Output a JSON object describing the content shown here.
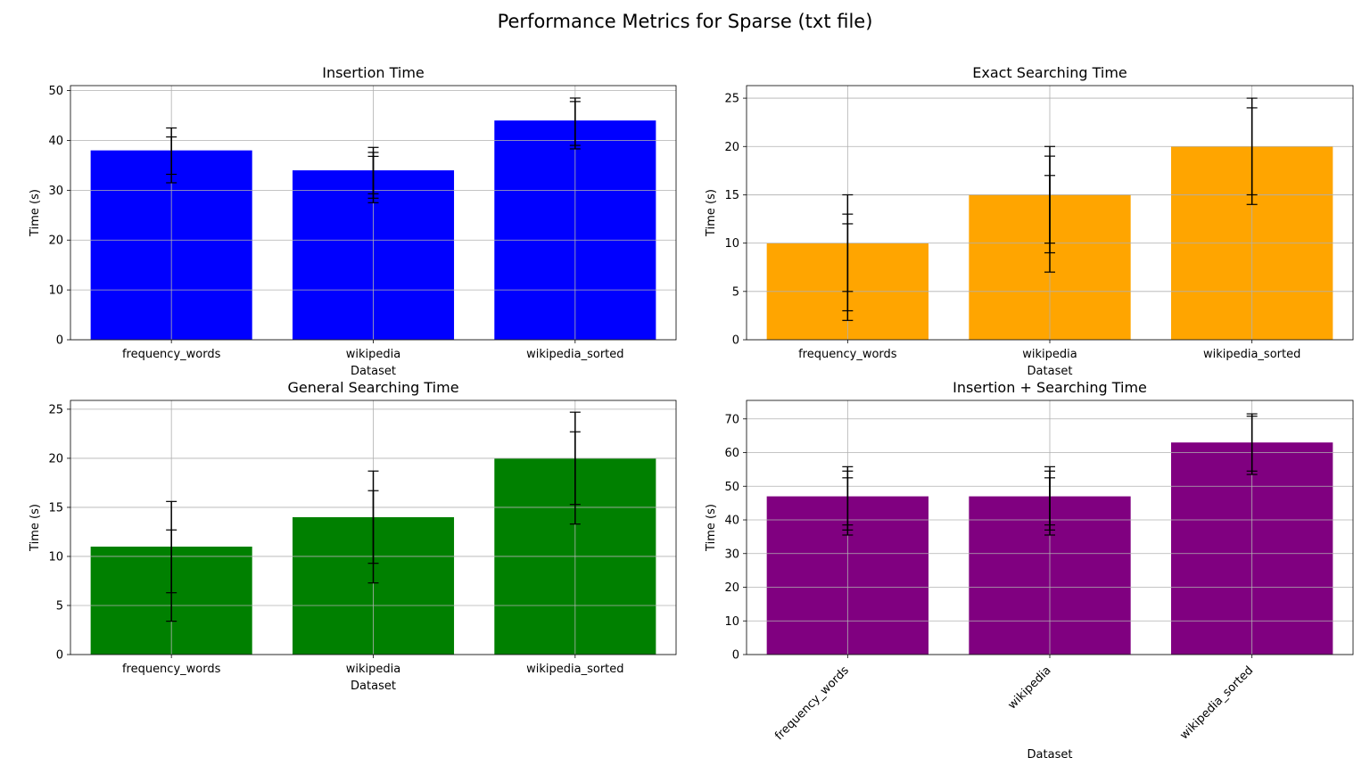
{
  "figure": {
    "title": "Performance Metrics for Sparse (txt file)"
  },
  "chart_data": [
    {
      "type": "bar",
      "title": "Insertion Time",
      "xlabel": "Dataset",
      "ylabel": "Time (s)",
      "categories": [
        "frequency_words",
        "wikipedia",
        "wikipedia_sorted"
      ],
      "values": [
        38,
        34,
        44
      ],
      "color": "#0000ff",
      "ylim": [
        0,
        51
      ],
      "yticks": [
        0,
        10,
        20,
        30,
        40,
        50
      ],
      "grid": true,
      "error_bars": [
        [
          [
            31.5,
            42.5
          ],
          [
            33.2,
            40.7
          ]
        ],
        [
          [
            27.5,
            38.6
          ],
          [
            29.3,
            36.8
          ],
          [
            28.4,
            37.6
          ]
        ],
        [
          [
            38.3,
            48.5
          ],
          [
            39.0,
            47.8
          ]
        ]
      ]
    },
    {
      "type": "bar",
      "title": "Exact Searching Time",
      "xlabel": "Dataset",
      "ylabel": "Time (s)",
      "categories": [
        "frequency_words",
        "wikipedia",
        "wikipedia_sorted"
      ],
      "values": [
        10,
        15,
        20
      ],
      "color": "#ffa500",
      "ylim": [
        0,
        26.3
      ],
      "yticks": [
        0,
        5,
        10,
        15,
        20,
        25
      ],
      "grid": true,
      "error_bars": [
        [
          [
            2.0,
            15.0
          ],
          [
            3.0,
            13.0
          ],
          [
            5.0,
            12.0
          ]
        ],
        [
          [
            7.0,
            20.0
          ],
          [
            9.0,
            19.0
          ],
          [
            10.0,
            17.0
          ]
        ],
        [
          [
            14.0,
            25.0
          ],
          [
            15.0,
            24.0
          ]
        ]
      ]
    },
    {
      "type": "bar",
      "title": "General Searching Time",
      "xlabel": "Dataset",
      "ylabel": "Time (s)",
      "categories": [
        "frequency_words",
        "wikipedia",
        "wikipedia_sorted"
      ],
      "values": [
        11,
        14,
        20
      ],
      "color": "#008000",
      "ylim": [
        0,
        25.9
      ],
      "yticks": [
        0,
        5,
        10,
        15,
        20,
        25
      ],
      "grid": true,
      "error_bars": [
        [
          [
            3.4,
            15.6
          ],
          [
            6.3,
            12.7
          ]
        ],
        [
          [
            7.3,
            18.7
          ],
          [
            9.3,
            16.7
          ]
        ],
        [
          [
            13.3,
            24.7
          ],
          [
            15.3,
            22.7
          ]
        ]
      ]
    },
    {
      "type": "bar",
      "title": "Insertion + Searching Time",
      "xlabel": "Dataset",
      "ylabel": "Time (s)",
      "categories": [
        "frequency_words",
        "wikipedia",
        "wikipedia_sorted"
      ],
      "values": [
        47,
        47,
        63
      ],
      "color": "#800080",
      "ylim": [
        0,
        75.5
      ],
      "yticks": [
        0,
        10,
        20,
        30,
        40,
        50,
        60,
        70
      ],
      "grid": true,
      "xtick_rotation": 45,
      "error_bars": [
        [
          [
            35.5,
            55.8
          ],
          [
            37.0,
            54.5
          ],
          [
            38.5,
            52.5
          ]
        ],
        [
          [
            35.5,
            55.8
          ],
          [
            37.0,
            54.5
          ],
          [
            38.5,
            52.5
          ]
        ],
        [
          [
            53.5,
            71.5
          ],
          [
            54.5,
            70.8
          ]
        ]
      ]
    }
  ]
}
